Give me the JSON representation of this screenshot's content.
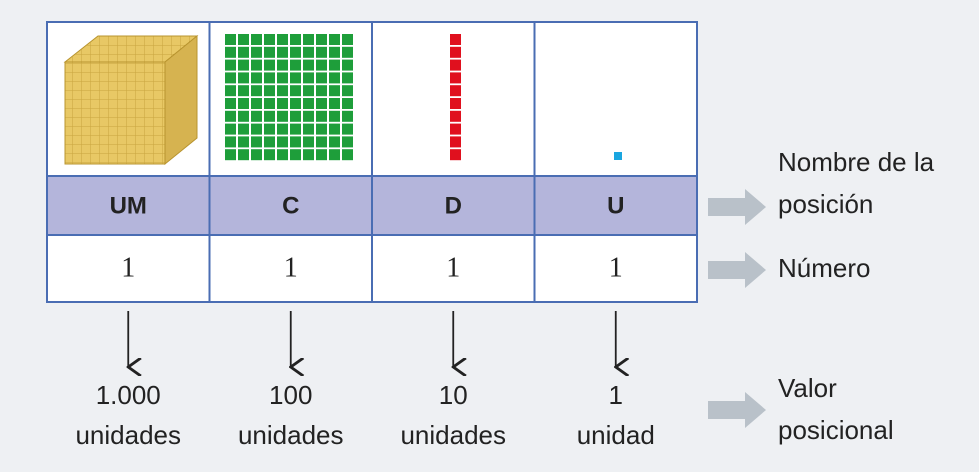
{
  "table": {
    "columns": [
      {
        "position": "UM",
        "number": 1,
        "value": "1.000",
        "unit": "unidades"
      },
      {
        "position": "C",
        "number": 1,
        "value": "100",
        "unit": "unidades"
      },
      {
        "position": "D",
        "number": 1,
        "value": "10",
        "unit": "unidades"
      },
      {
        "position": "U",
        "number": 1,
        "value": "1",
        "unit": "unidad"
      }
    ]
  },
  "labels": {
    "position": [
      "Nombre de la",
      "posición"
    ],
    "number": "Número",
    "value": [
      "Valor",
      "posicional"
    ]
  }
}
